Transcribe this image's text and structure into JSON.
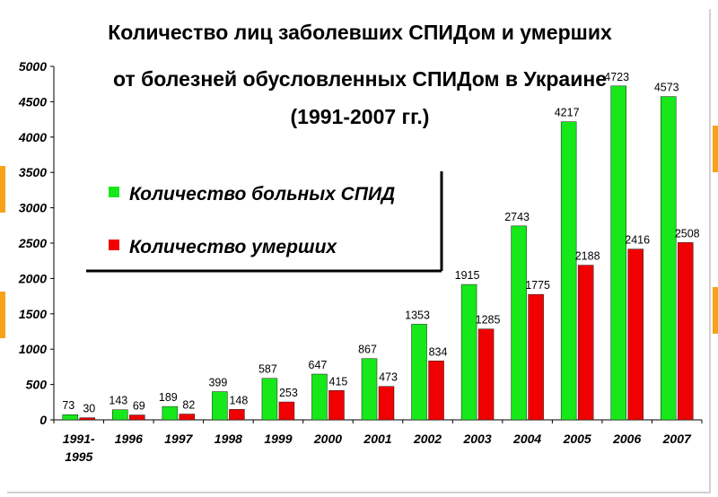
{
  "chart_data": {
    "type": "bar",
    "title_lines": [
      "Количество лиц заболевших СПИДом и умерших",
      "от болезней обусловленных СПИДом в Украине",
      "(1991-2007 гг.)"
    ],
    "categories": [
      "1991-1995",
      "1996",
      "1997",
      "1998",
      "1999",
      "2000",
      "2001",
      "2002",
      "2003",
      "2004",
      "2005",
      "2006",
      "2007"
    ],
    "category_lines": [
      [
        "1991-",
        "1995"
      ],
      [
        "1996"
      ],
      [
        "1997"
      ],
      [
        "1998"
      ],
      [
        "1999"
      ],
      [
        "2000"
      ],
      [
        "2001"
      ],
      [
        "2002"
      ],
      [
        "2003"
      ],
      [
        "2004"
      ],
      [
        "2005"
      ],
      [
        "2006"
      ],
      [
        "2007"
      ]
    ],
    "series": [
      {
        "name": "Количество больных СПИД",
        "color": "#16e81a",
        "values": [
          73,
          143,
          189,
          399,
          587,
          647,
          867,
          1353,
          1915,
          2743,
          4217,
          4723,
          4573
        ]
      },
      {
        "name": "Количество умерших",
        "color": "#f00000",
        "values": [
          30,
          69,
          82,
          148,
          253,
          415,
          473,
          834,
          1285,
          1775,
          2188,
          2416,
          2508
        ]
      }
    ],
    "ylim": [
      0,
      5000
    ],
    "yticks": [
      0,
      500,
      1000,
      1500,
      2000,
      2500,
      3000,
      3500,
      4000,
      4500,
      5000
    ],
    "legend_position": "upper-left",
    "grid": false
  },
  "theme": {
    "accent_orange": "#f7a21b"
  }
}
